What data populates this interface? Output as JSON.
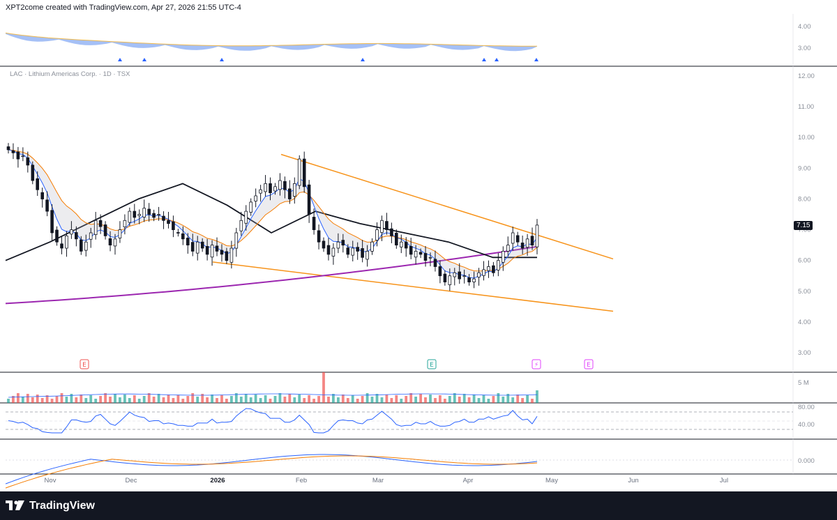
{
  "header": {
    "caption": "XPT2come created with TradingView.com, Apr 27, 2026 21:55 UTC-4",
    "symbol_line": "LAC · Lithium Americas Corp. · 1D · TSX"
  },
  "footer": {
    "brand": "TradingView"
  },
  "last_price_label": "7.15",
  "colors": {
    "up": "#26a69a",
    "down": "#ef5350",
    "wedge": "#f7931a",
    "sma_long": "#9c27b0",
    "sma_mid": "#131722",
    "ema_fast": "#2962ff",
    "ema_slow": "#f57c00"
  },
  "chart_data": {
    "type": "candlestick",
    "symbol": "LAC",
    "interval": "1D",
    "exchange": "TSX",
    "x_axis": {
      "labels": [
        "Nov",
        "Dec",
        "2026",
        "Feb",
        "Mar",
        "Apr",
        "May",
        "Jun",
        "Jul"
      ]
    },
    "price_axis": {
      "ticks": [
        "12.00",
        "11.00",
        "10.00",
        "9.00",
        "8.00",
        "7.00",
        "6.00",
        "5.00",
        "4.00",
        "3.00"
      ],
      "ylim": [
        2.8,
        12.2
      ]
    },
    "last_price": 7.15,
    "closes": [
      9.6,
      9.5,
      9.3,
      9.4,
      9.1,
      8.6,
      8.3,
      8.0,
      7.6,
      6.9,
      6.6,
      6.4,
      6.8,
      7.0,
      6.7,
      6.3,
      6.6,
      6.9,
      7.3,
      7.1,
      6.8,
      6.5,
      6.7,
      7.0,
      7.3,
      7.6,
      7.4,
      7.5,
      7.7,
      7.5,
      7.4,
      7.5,
      7.3,
      7.2,
      7.0,
      6.9,
      6.7,
      6.5,
      6.3,
      6.6,
      6.4,
      6.2,
      6.5,
      6.3,
      6.2,
      6.0,
      6.4,
      6.9,
      7.3,
      7.6,
      7.9,
      8.1,
      8.3,
      8.5,
      8.2,
      8.4,
      8.6,
      8.3,
      8.0,
      8.5,
      9.3,
      8.4,
      7.5,
      7.0,
      6.6,
      6.4,
      6.2,
      6.4,
      6.6,
      6.5,
      6.2,
      6.4,
      6.3,
      6.1,
      6.3,
      6.6,
      7.0,
      7.3,
      7.0,
      6.8,
      6.5,
      6.6,
      6.4,
      6.2,
      6.3,
      6.2,
      6.0,
      6.1,
      5.8,
      5.5,
      5.3,
      5.5,
      5.6,
      5.4,
      5.5,
      5.3,
      5.4,
      5.6,
      5.7,
      5.8,
      5.6,
      6.0,
      6.3,
      6.5,
      6.9,
      6.6,
      6.4,
      6.7,
      6.5,
      7.15
    ],
    "indicators": {
      "sma_long_start": 4.6,
      "sma_long_end": 6.45,
      "sma_mid": [
        6.0,
        6.6,
        7.3,
        8.0,
        8.5,
        7.8,
        6.9,
        7.6,
        7.2,
        6.9,
        6.6,
        6.1,
        6.1
      ]
    },
    "channel": {
      "upper": {
        "from": 9.45,
        "to": 6.05
      },
      "lower": {
        "from": 5.95,
        "to": 4.35
      }
    },
    "volume_axis": {
      "ticks": [
        "5 M"
      ]
    },
    "rsi_axis": {
      "ticks": [
        "80.00",
        "40.00"
      ]
    },
    "macd_axis": {
      "ticks": [
        "0.000"
      ]
    },
    "top_indicator_axis": {
      "ticks": [
        "4.00",
        "3.00"
      ]
    },
    "event_markers": [
      {
        "glyph": "E",
        "color": "#ef5350"
      },
      {
        "glyph": "E",
        "color": "#26a69a"
      },
      {
        "glyph": "⚡",
        "color": "#e040fb"
      },
      {
        "glyph": "E",
        "color": "#e040fb"
      }
    ]
  }
}
